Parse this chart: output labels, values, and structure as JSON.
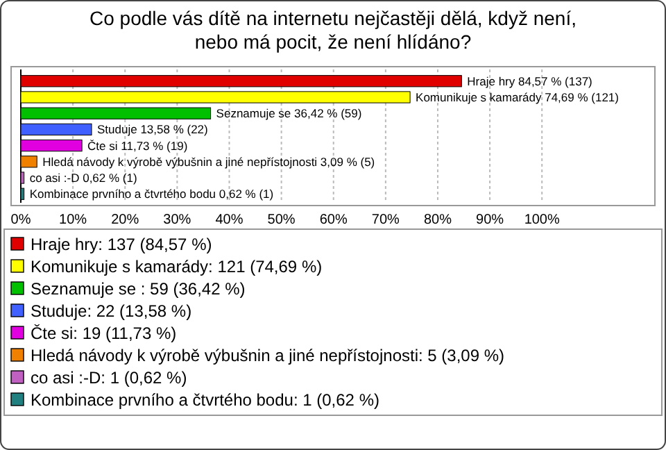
{
  "chart_data": {
    "type": "bar",
    "title": "Co podle vás dítě na internetu nejčastěji dělá, když není, nebo má pocit, že není hlídáno?",
    "orientation": "horizontal",
    "categories": [
      null,
      null,
      null,
      null,
      null,
      null,
      null,
      null
    ],
    "series": [
      {
        "name": "Hraje hry: 137 (84,57 %)",
        "color": "#e00000",
        "values": [
          84.57,
          null,
          null,
          null,
          null,
          null,
          null,
          null
        ],
        "value_labels": [
          "Hraje hry 84,57 % (137)",
          null,
          null,
          null,
          null,
          null,
          null,
          null
        ]
      },
      {
        "name": "Komunikuje s kamarády: 121 (74,69 %)",
        "color": "#ffff00",
        "values": [
          null,
          74.69,
          null,
          null,
          null,
          null,
          null,
          null
        ],
        "value_labels": [
          null,
          "Komunikuje s kamarády 74,69 % (121)",
          null,
          null,
          null,
          null,
          null,
          null
        ]
      },
      {
        "name": "Seznamuje se : 59 (36,42 %)",
        "color": "#00c000",
        "values": [
          null,
          null,
          36.42,
          null,
          null,
          null,
          null,
          null
        ],
        "value_labels": [
          null,
          null,
          "Seznamuje se  36,42 % (59)",
          null,
          null,
          null,
          null,
          null
        ]
      },
      {
        "name": "Studuje: 22 (13,58 %)",
        "color": "#4060ff",
        "values": [
          null,
          null,
          null,
          13.58,
          null,
          null,
          null,
          null
        ],
        "value_labels": [
          null,
          null,
          null,
          "Studuje 13,58 % (22)",
          null,
          null,
          null,
          null
        ]
      },
      {
        "name": "Čte si: 19 (11,73 %)",
        "color": "#e000e0",
        "values": [
          null,
          null,
          null,
          null,
          11.73,
          null,
          null,
          null
        ],
        "value_labels": [
          null,
          null,
          null,
          null,
          "Čte si 11,73 % (19)",
          null,
          null,
          null
        ]
      },
      {
        "name": "Hledá návody k výrobě výbušnin a jiné nepřístojnosti: 5 (3,09 %)",
        "color": "#f08000",
        "values": [
          null,
          null,
          null,
          null,
          null,
          3.09,
          null,
          null
        ],
        "value_labels": [
          null,
          null,
          null,
          null,
          null,
          "Hledá návody k výrobě výbušnin a jiné nepřístojnosti 3,09 % (5)",
          null,
          null
        ]
      },
      {
        "name": "co asi :-D: 1 (0,62 %)",
        "color": "#c060c0",
        "values": [
          null,
          null,
          null,
          null,
          null,
          null,
          0.62,
          null
        ],
        "value_labels": [
          null,
          null,
          null,
          null,
          null,
          null,
          "co asi :-D 0,62 % (1)",
          null
        ]
      },
      {
        "name": "Kombinace prvního a čtvrtého bodu: 1 (0,62 %)",
        "color": "#208080",
        "values": [
          null,
          null,
          null,
          null,
          null,
          null,
          null,
          0.62
        ],
        "value_labels": [
          null,
          null,
          null,
          null,
          null,
          null,
          null,
          "Kombinace prvního a čtvrtého bodu 0,62 % (1)"
        ]
      }
    ],
    "xlim": [
      0,
      123
    ],
    "xticks": [
      {
        "value": 0,
        "label": "0%"
      },
      {
        "value": 10,
        "label": "10%"
      },
      {
        "value": 20,
        "label": "20%"
      },
      {
        "value": 30,
        "label": "30%"
      },
      {
        "value": 40,
        "label": "40%"
      },
      {
        "value": 50,
        "label": "50%"
      },
      {
        "value": 60,
        "label": "60%"
      },
      {
        "value": 70,
        "label": "70%"
      },
      {
        "value": 80,
        "label": "80%"
      },
      {
        "value": 90,
        "label": "90%"
      },
      {
        "value": 100,
        "label": "100%"
      }
    ],
    "grid": "x",
    "legend": "bottom"
  }
}
